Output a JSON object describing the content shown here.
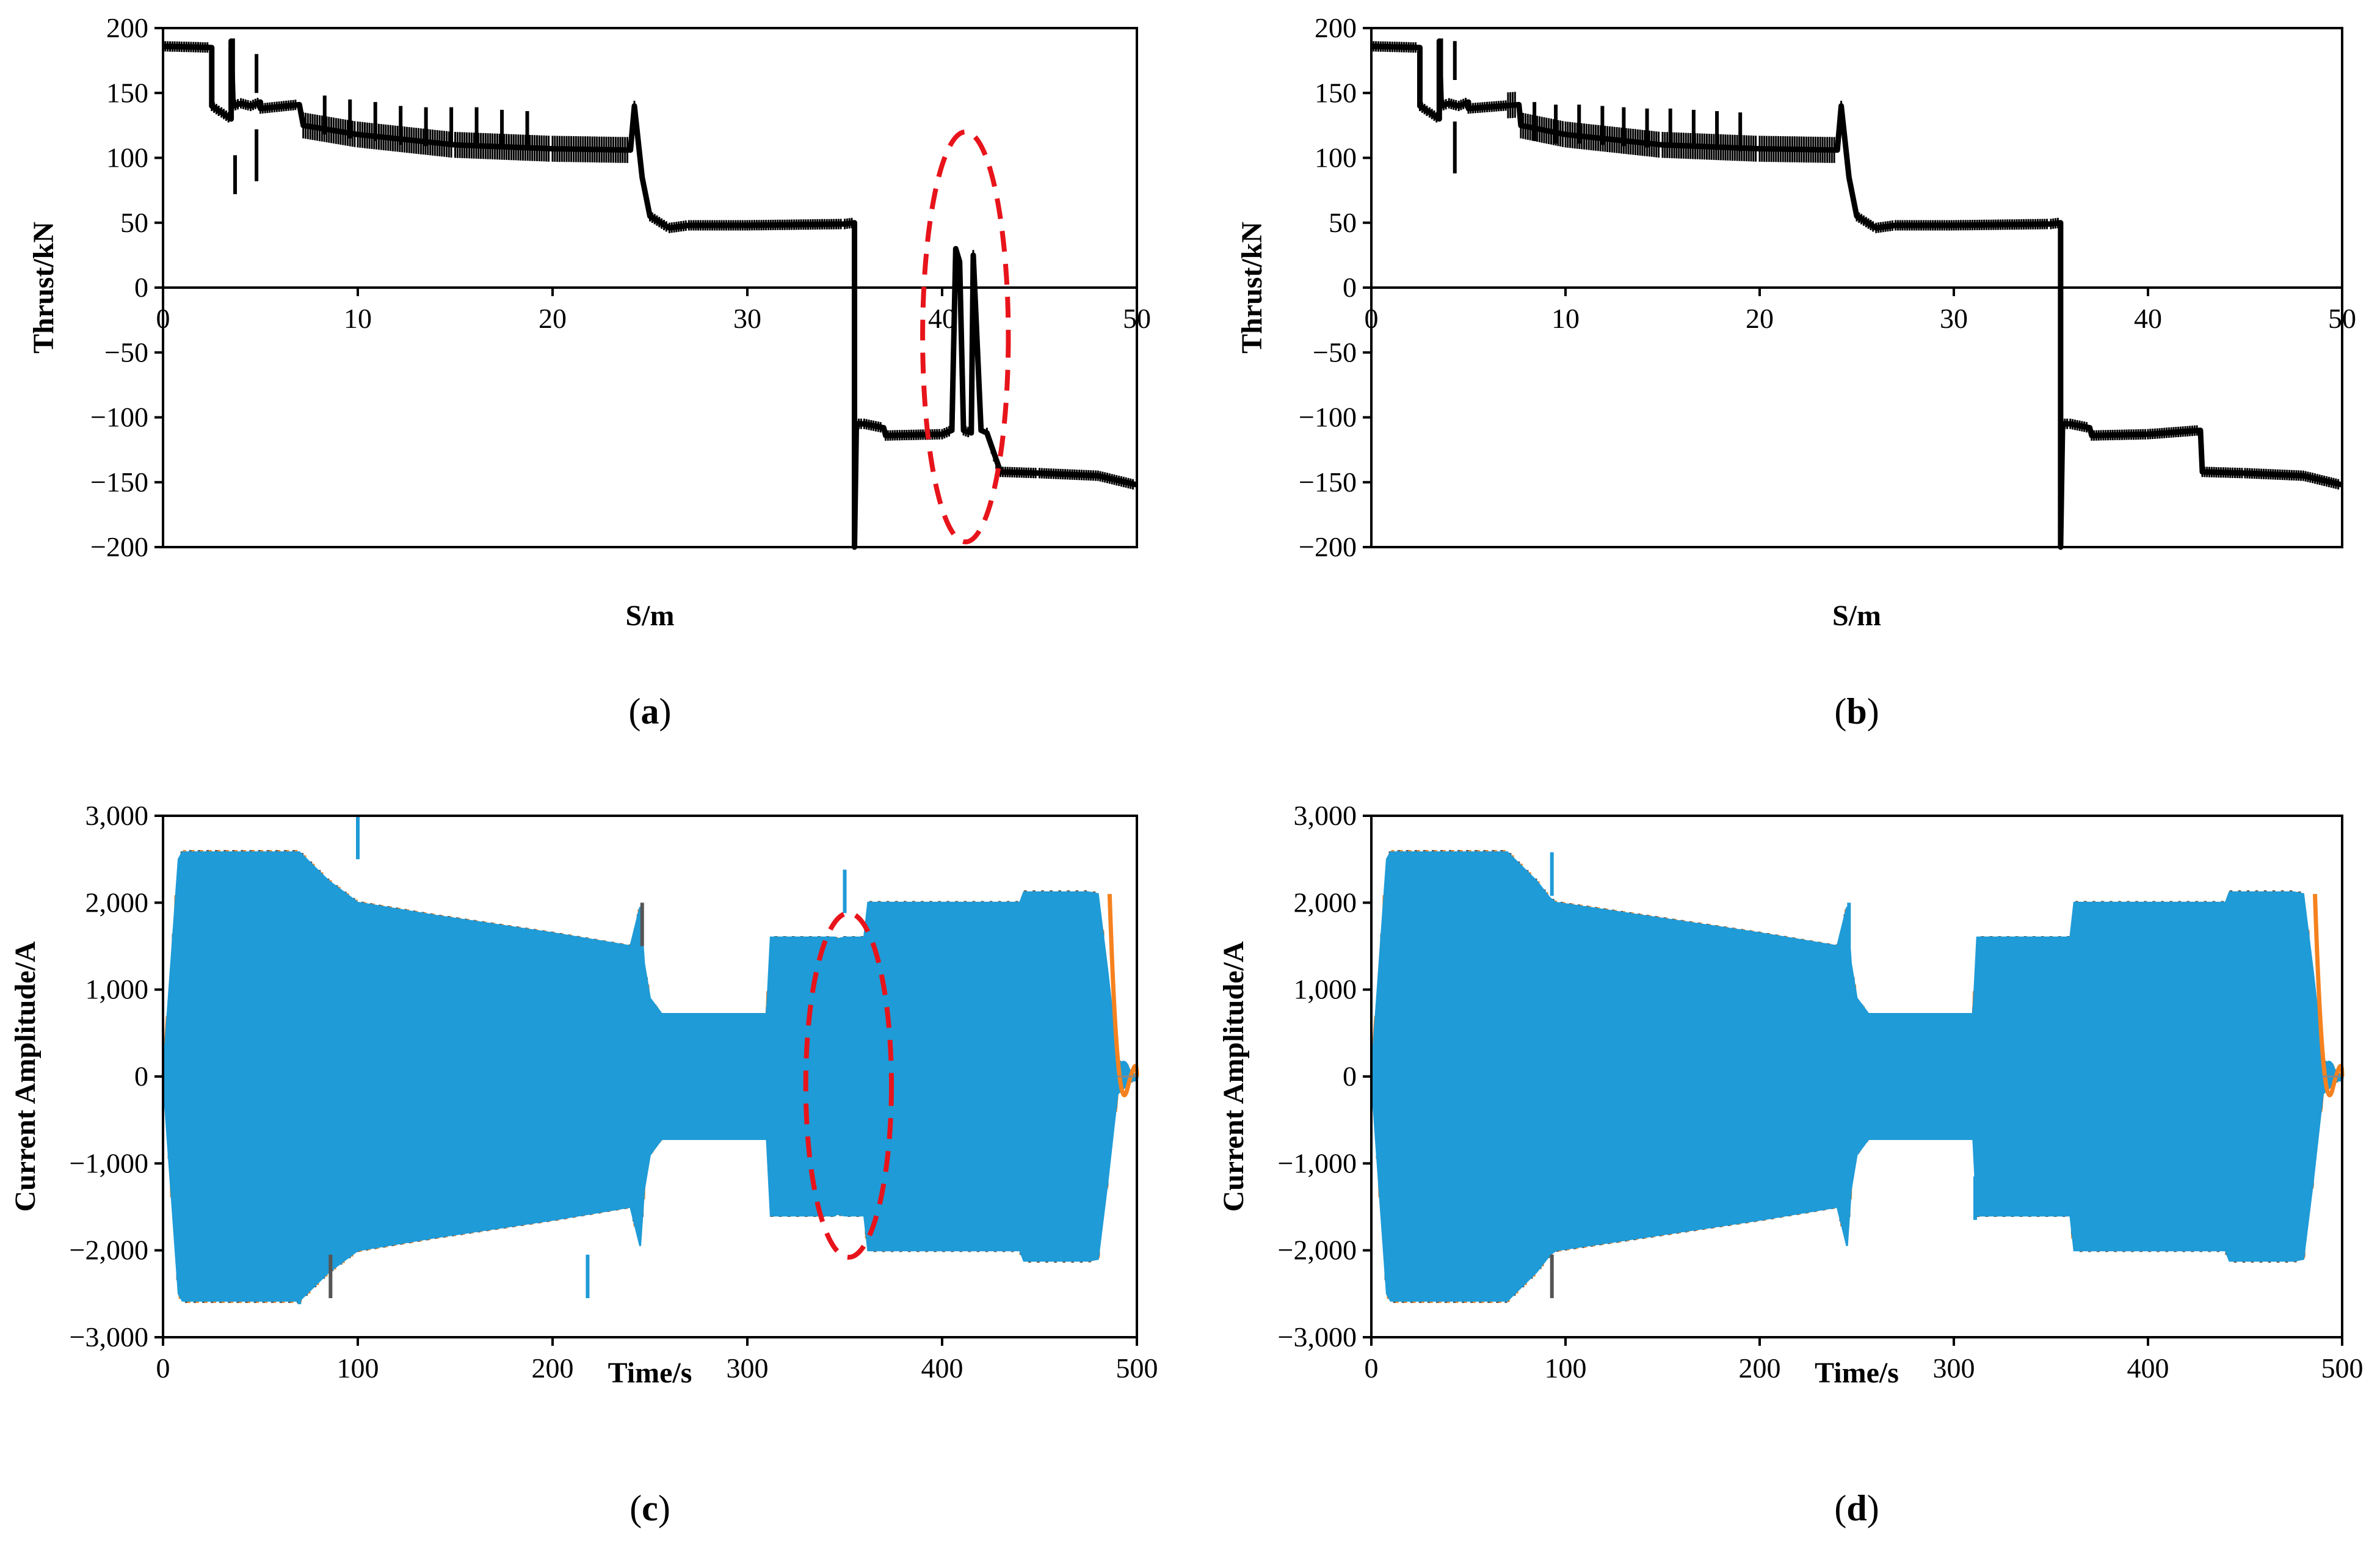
{
  "chart_data": [
    {
      "id": "a",
      "type": "line",
      "caption_letter": "a",
      "xlabel": "S/m",
      "ylabel": "Thrust/kN",
      "xlim": [
        0,
        50
      ],
      "ylim": [
        -200,
        200
      ],
      "xticks": [
        0,
        10,
        20,
        30,
        40,
        50
      ],
      "yticks": [
        200,
        150,
        100,
        50,
        0,
        -50,
        -100,
        -150,
        -200
      ],
      "ytick_labels": [
        "200",
        "150",
        "100",
        "50",
        "0",
        "−50",
        "−100",
        "−150",
        "−200"
      ],
      "x_axis_at": 0,
      "series_color": "#000000",
      "series": [
        {
          "name": "Thrust",
          "x": [
            0,
            2.5,
            2.5,
            3,
            3.5,
            3.5,
            3.6,
            4,
            4.5,
            5,
            5,
            7,
            7.2,
            10,
            15,
            20,
            24,
            24.2,
            24.6,
            25,
            26,
            27,
            30,
            35,
            35.5,
            35.5,
            35.6,
            36,
            37,
            37.1,
            40,
            40.5,
            40.7,
            40.9,
            41.1,
            41.5,
            41.6,
            42,
            42.3,
            43,
            45,
            48,
            50
          ],
          "y": [
            186,
            185,
            140,
            135,
            130,
            190,
            140,
            142,
            140,
            143,
            138,
            141,
            125,
            118,
            110,
            107,
            106,
            140,
            85,
            55,
            46,
            48,
            48,
            49,
            50,
            -200,
            -105,
            -105,
            -108,
            -114,
            -113,
            -110,
            30,
            20,
            -110,
            -112,
            25,
            -110,
            -112,
            -142,
            -143,
            -145,
            -152
          ]
        }
      ],
      "spikes": [
        {
          "x": 3.6,
          "y": 192
        },
        {
          "x": 3.7,
          "y": 102
        },
        {
          "x": 4.8,
          "y": 180
        },
        {
          "x": 4.8,
          "y": 82
        },
        {
          "x": 8.3,
          "y": 148
        },
        {
          "x": 9.6,
          "y": 145
        },
        {
          "x": 10.9,
          "y": 143
        },
        {
          "x": 12.2,
          "y": 140
        },
        {
          "x": 13.5,
          "y": 139
        },
        {
          "x": 14.8,
          "y": 139
        },
        {
          "x": 16.1,
          "y": 139
        },
        {
          "x": 17.4,
          "y": 137
        },
        {
          "x": 18.7,
          "y": 136
        }
      ],
      "annotation": {
        "shape": "dashed-ellipse",
        "color": "#e8141b",
        "cx": 41.2,
        "cy": -38,
        "rx_units": 2.2,
        "ry_units": 158
      }
    },
    {
      "id": "b",
      "type": "line",
      "caption_letter": "b",
      "xlabel": "S/m",
      "ylabel": "Thrust/kN",
      "xlim": [
        0,
        50
      ],
      "ylim": [
        -200,
        200
      ],
      "xticks": [
        0,
        10,
        20,
        30,
        40,
        50
      ],
      "yticks": [
        200,
        150,
        100,
        50,
        0,
        -50,
        -100,
        -150,
        -200
      ],
      "ytick_labels": [
        "200",
        "150",
        "100",
        "50",
        "0",
        "−50",
        "−100",
        "−150",
        "−200"
      ],
      "x_axis_at": 0,
      "series_color": "#000000",
      "series": [
        {
          "name": "Thrust",
          "x": [
            0,
            2.5,
            2.5,
            3,
            3.5,
            3.5,
            3.6,
            4,
            4.5,
            5,
            5,
            7.6,
            7.7,
            10,
            15,
            20,
            24,
            24.2,
            24.6,
            25,
            26,
            27,
            30,
            35,
            35.5,
            35.5,
            35.6,
            36,
            37,
            37.1,
            40,
            42.7,
            42.8,
            45,
            48,
            50
          ],
          "y": [
            186,
            185,
            140,
            135,
            130,
            190,
            140,
            142,
            140,
            143,
            138,
            141,
            125,
            118,
            110,
            107,
            106,
            140,
            85,
            55,
            46,
            48,
            48,
            49,
            50,
            -200,
            -105,
            -105,
            -108,
            -114,
            -113,
            -110,
            -142,
            -143,
            -145,
            -152
          ]
        }
      ],
      "spikes": [
        {
          "x": 3.6,
          "y": 192
        },
        {
          "x": 4.3,
          "y": 190
        },
        {
          "x": 4.3,
          "y": 88
        },
        {
          "x": 8.4,
          "y": 143
        },
        {
          "x": 9.5,
          "y": 141
        },
        {
          "x": 10.7,
          "y": 141
        },
        {
          "x": 11.9,
          "y": 140
        },
        {
          "x": 13.0,
          "y": 139
        },
        {
          "x": 14.2,
          "y": 138
        },
        {
          "x": 15.4,
          "y": 138
        },
        {
          "x": 16.6,
          "y": 137
        },
        {
          "x": 17.8,
          "y": 136
        },
        {
          "x": 19.0,
          "y": 135
        }
      ],
      "annotation": null
    },
    {
      "id": "c",
      "type": "area",
      "caption_letter": "c",
      "xlabel": "Time/s",
      "ylabel": "Current  Amplitude/A",
      "xlim": [
        0,
        500
      ],
      "ylim": [
        -3000,
        3000
      ],
      "xticks": [
        0,
        100,
        200,
        300,
        400,
        500
      ],
      "yticks": [
        3000,
        2000,
        1000,
        0,
        -1000,
        -2000,
        -3000
      ],
      "ytick_labels": [
        "3,000",
        "2,000",
        "1,000",
        "0",
        "−1,000",
        "−2,000",
        "−3,000"
      ],
      "series_colors": {
        "phase_a": "#1f9bd7",
        "phase_b": "#f5821f",
        "phase_c": "#555555"
      },
      "envelope": {
        "x": [
          0,
          8,
          10,
          70,
          85,
          100,
          140,
          200,
          240,
          245,
          247,
          250,
          256,
          260,
          300,
          310,
          312,
          330,
          345,
          346,
          350,
          356,
          360,
          362,
          420,
          440,
          442,
          475,
          480,
          485,
          490,
          500
        ],
        "upper": [
          0,
          2500,
          2580,
          2580,
          2250,
          2000,
          1850,
          1650,
          1500,
          1950,
          1300,
          900,
          720,
          720,
          720,
          720,
          1600,
          1600,
          1600,
          1580,
          1600,
          1600,
          1600,
          2000,
          2000,
          2000,
          2120,
          2120,
          2100,
          1200,
          200,
          0
        ],
        "lower": [
          0,
          -2500,
          -2580,
          -2580,
          -2250,
          -2000,
          -1850,
          -1650,
          -1500,
          -1950,
          -1300,
          -900,
          -720,
          -720,
          -720,
          -720,
          -1600,
          -1600,
          -1600,
          -1580,
          -1600,
          -1600,
          -1600,
          -2000,
          -2000,
          -2000,
          -2120,
          -2120,
          -2100,
          -1200,
          -200,
          0
        ]
      },
      "spikes": [
        {
          "x": 100,
          "y": 3000
        },
        {
          "x": 86,
          "y": -2550
        },
        {
          "x": 218,
          "y": -2550
        },
        {
          "x": 350,
          "y": 2380
        },
        {
          "x": 246,
          "y": 2000
        },
        {
          "x": 70,
          "y": -2620
        }
      ],
      "annotation": {
        "shape": "dashed-ellipse",
        "color": "#e8141b",
        "cx": 352,
        "cy": -100,
        "rx_units": 22,
        "ry_units": 1980
      }
    },
    {
      "id": "d",
      "type": "area",
      "caption_letter": "d",
      "xlabel": "Time/s",
      "ylabel": "Current  Amplitude/A",
      "xlim": [
        0,
        500
      ],
      "ylim": [
        -3000,
        3000
      ],
      "xticks": [
        0,
        100,
        200,
        300,
        400,
        500
      ],
      "yticks": [
        3000,
        2000,
        1000,
        0,
        -1000,
        -2000,
        -3000
      ],
      "ytick_labels": [
        "3,000",
        "2,000",
        "1,000",
        "0",
        "−1,000",
        "−2,000",
        "−3,000"
      ],
      "series_colors": {
        "phase_a": "#1f9bd7",
        "phase_b": "#f5821f",
        "phase_c": "#555555"
      },
      "envelope": {
        "x": [
          0,
          8,
          10,
          70,
          85,
          92,
          95,
          140,
          200,
          240,
          245,
          247,
          250,
          256,
          260,
          300,
          310,
          312,
          360,
          362,
          420,
          440,
          442,
          475,
          480,
          485,
          490,
          500
        ],
        "upper": [
          0,
          2500,
          2580,
          2580,
          2250,
          2050,
          2000,
          1850,
          1650,
          1500,
          1950,
          1300,
          900,
          720,
          720,
          720,
          720,
          1600,
          1600,
          2000,
          2000,
          2000,
          2120,
          2120,
          2100,
          1200,
          200,
          0
        ],
        "lower": [
          0,
          -2500,
          -2580,
          -2580,
          -2250,
          -2050,
          -2000,
          -1850,
          -1650,
          -1500,
          -1950,
          -1300,
          -900,
          -720,
          -720,
          -720,
          -720,
          -1600,
          -1600,
          -2000,
          -2000,
          -2000,
          -2120,
          -2120,
          -2100,
          -1200,
          -200,
          0
        ]
      },
      "spikes": [
        {
          "x": 93,
          "y": 2580
        },
        {
          "x": 93,
          "y": -2550
        },
        {
          "x": 246,
          "y": 2000
        },
        {
          "x": 311,
          "y": -1650
        }
      ],
      "annotation": null
    }
  ]
}
